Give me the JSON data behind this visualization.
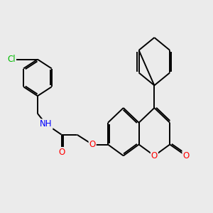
{
  "background_color": "#ebebeb",
  "bond_color": "#000000",
  "bond_width": 1.4,
  "atom_colors": {
    "O": "#ff0000",
    "N": "#0000ff",
    "Cl": "#00bb00",
    "C": "#000000",
    "H": "#555555"
  },
  "font_size": 8.5,
  "fig_width": 3.0,
  "fig_height": 3.0,
  "dpi": 100
}
